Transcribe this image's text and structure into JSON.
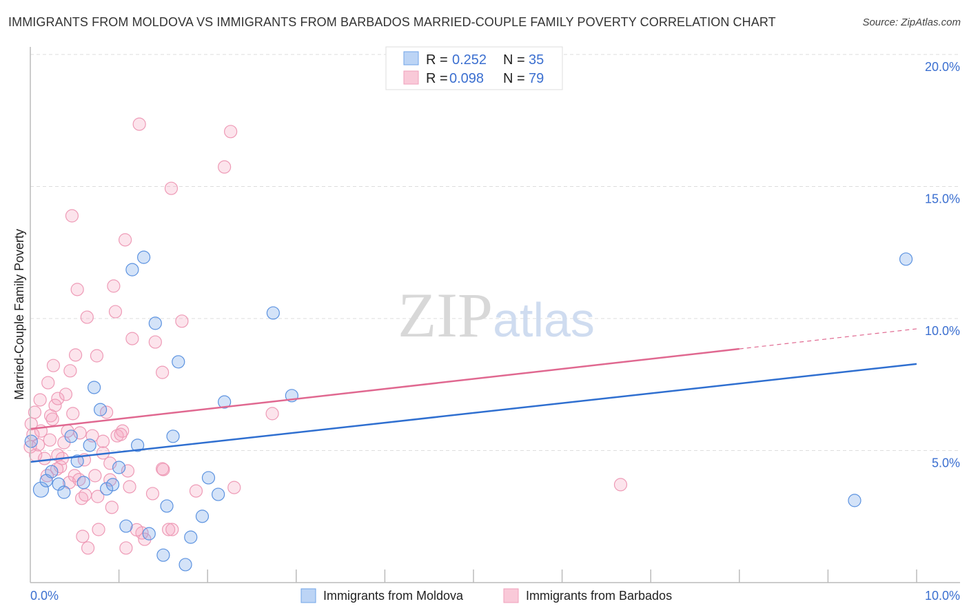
{
  "chart_data": {
    "type": "scatter",
    "title": "IMMIGRANTS FROM MOLDOVA VS IMMIGRANTS FROM BARBADOS MARRIED-COUPLE FAMILY POVERTY CORRELATION CHART",
    "source": "Source: ZipAtlas.com",
    "xlabel": "",
    "ylabel": "Married-Couple Family Poverty",
    "xlim": [
      0,
      10
    ],
    "ylim": [
      0,
      20
    ],
    "x_tick_labels": [
      "0.0%",
      "10.0%"
    ],
    "y_ticks": [
      5,
      10,
      15,
      20
    ],
    "y_tick_labels": [
      "5.0%",
      "10.0%",
      "15.0%",
      "20.0%"
    ],
    "grid": true,
    "legend_placement": "top-center",
    "watermark": "ZIPatlas",
    "colors": {
      "moldova": "#6fa3e8",
      "moldova_line": "#2f6fd0",
      "barbados": "#f4a6bf",
      "barbados_line": "#e06890"
    },
    "legend": [
      {
        "r_label": "R =",
        "r": "0.252",
        "n_label": "N =",
        "n": "35"
      },
      {
        "r_label": "R =",
        "r": "0.098",
        "n_label": "N =",
        "n": "79"
      }
    ],
    "series": [
      {
        "name": "Immigrants from Moldova",
        "trend": {
          "x0": 0,
          "y0": 4.57,
          "x1": 10,
          "y1": 8.28
        },
        "points": [
          [
            0.12,
            3.52
          ],
          [
            0.18,
            3.86
          ],
          [
            0.24,
            4.2
          ],
          [
            0.32,
            3.73
          ],
          [
            0.38,
            3.42
          ],
          [
            0.46,
            5.54
          ],
          [
            0.53,
            4.6
          ],
          [
            0.6,
            3.79
          ],
          [
            0.67,
            5.2
          ],
          [
            0.72,
            7.39
          ],
          [
            0.79,
            6.55
          ],
          [
            0.86,
            3.55
          ],
          [
            0.93,
            3.71
          ],
          [
            1.0,
            4.36
          ],
          [
            1.08,
            2.14
          ],
          [
            1.15,
            11.85
          ],
          [
            1.21,
            5.2
          ],
          [
            1.28,
            12.32
          ],
          [
            1.34,
            1.85
          ],
          [
            1.41,
            9.82
          ],
          [
            1.5,
            1.04
          ],
          [
            1.54,
            2.9
          ],
          [
            1.61,
            5.54
          ],
          [
            1.67,
            8.36
          ],
          [
            1.75,
            0.68
          ],
          [
            1.81,
            1.72
          ],
          [
            1.94,
            2.51
          ],
          [
            2.01,
            3.97
          ],
          [
            2.12,
            3.34
          ],
          [
            2.19,
            6.84
          ],
          [
            2.74,
            10.21
          ],
          [
            2.95,
            7.08
          ],
          [
            9.3,
            3.11
          ],
          [
            9.88,
            12.25
          ],
          [
            0.01,
            5.35
          ]
        ]
      },
      {
        "name": "Immigrants from Barbados",
        "trend": {
          "x0": 0,
          "y0": 5.82,
          "x1": 8,
          "y1": 8.85,
          "dash_to_x": 10,
          "dash_to_y": 9.61
        },
        "points": [
          [
            0.01,
            6.01
          ],
          [
            0.03,
            5.61
          ],
          [
            0.06,
            4.83
          ],
          [
            0.09,
            5.22
          ],
          [
            0.12,
            5.74
          ],
          [
            0.16,
            4.7
          ],
          [
            0.19,
            4.05
          ],
          [
            0.2,
            7.57
          ],
          [
            0.22,
            5.4
          ],
          [
            0.23,
            6.32
          ],
          [
            0.25,
            6.19
          ],
          [
            0.26,
            8.22
          ],
          [
            0.28,
            6.71
          ],
          [
            0.31,
            6.97
          ],
          [
            0.34,
            4.39
          ],
          [
            0.36,
            4.7
          ],
          [
            0.38,
            5.3
          ],
          [
            0.4,
            7.13
          ],
          [
            0.44,
            3.79
          ],
          [
            0.45,
            8.02
          ],
          [
            0.48,
            6.4
          ],
          [
            0.5,
            4.05
          ],
          [
            0.51,
            8.62
          ],
          [
            0.53,
            11.1
          ],
          [
            0.47,
            13.89
          ],
          [
            0.56,
            5.67
          ],
          [
            0.58,
            3.19
          ],
          [
            0.59,
            1.75
          ],
          [
            0.61,
            4.65
          ],
          [
            0.62,
            3.32
          ],
          [
            0.64,
            10.05
          ],
          [
            0.65,
            1.31
          ],
          [
            0.7,
            5.56
          ],
          [
            0.73,
            4.05
          ],
          [
            0.75,
            8.59
          ],
          [
            0.76,
            3.26
          ],
          [
            0.77,
            2.01
          ],
          [
            0.82,
            4.91
          ],
          [
            0.86,
            6.45
          ],
          [
            0.9,
            4.52
          ],
          [
            0.92,
            2.85
          ],
          [
            0.94,
            11.23
          ],
          [
            0.96,
            10.26
          ],
          [
            0.98,
            5.56
          ],
          [
            1.04,
            5.74
          ],
          [
            1.07,
            12.98
          ],
          [
            1.08,
            1.31
          ],
          [
            1.1,
            4.23
          ],
          [
            1.15,
            9.24
          ],
          [
            1.23,
            17.36
          ],
          [
            1.26,
            1.88
          ],
          [
            1.29,
            1.64
          ],
          [
            1.38,
            3.37
          ],
          [
            1.41,
            9.11
          ],
          [
            1.49,
            7.96
          ],
          [
            1.5,
            4.28
          ],
          [
            1.56,
            2.01
          ],
          [
            1.6,
            2.01
          ],
          [
            1.59,
            14.93
          ],
          [
            1.71,
            9.9
          ],
          [
            1.87,
            3.47
          ],
          [
            2.19,
            15.74
          ],
          [
            2.26,
            17.08
          ],
          [
            2.3,
            3.6
          ],
          [
            2.73,
            6.4
          ],
          [
            6.66,
            3.71
          ],
          [
            0.0,
            5.14
          ],
          [
            0.05,
            6.45
          ],
          [
            0.11,
            6.92
          ],
          [
            0.31,
            4.83
          ],
          [
            0.42,
            5.74
          ],
          [
            0.82,
            5.35
          ],
          [
            1.02,
            5.61
          ],
          [
            1.12,
            3.63
          ],
          [
            0.9,
            3.89
          ],
          [
            1.49,
            4.31
          ],
          [
            0.3,
            4.3
          ],
          [
            0.55,
            3.9
          ],
          [
            1.2,
            2.0
          ]
        ]
      }
    ]
  }
}
